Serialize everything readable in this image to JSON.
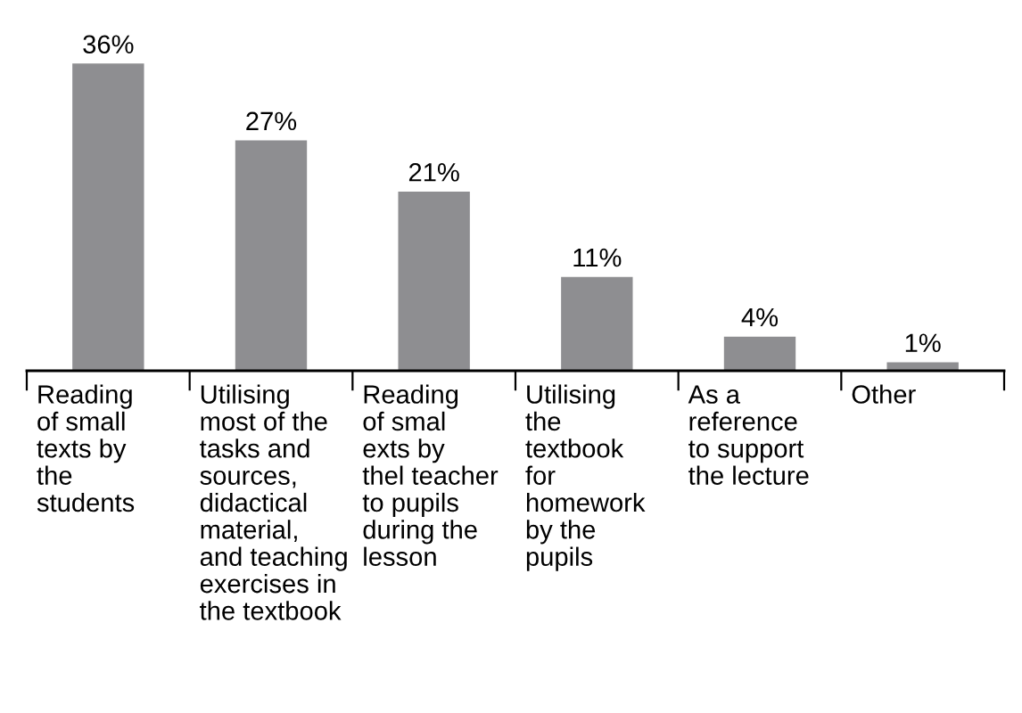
{
  "chart_data": {
    "type": "bar",
    "categories": [
      "Reading\nof small\ntexts by\nthe\nstudents",
      "Utilising\nmost of the\ntasks and\nsources,\ndidactical\nmaterial,\nand teaching\nexercises in\nthe textbook",
      "Reading\nof smal\nexts by\nthel teacher\nto pupils\nduring the\nlesson",
      "Utilising\nthe\ntextbook\nfor\nhomework\nby the\npupils",
      "As a\nreference\nto support\nthe lecture",
      "Other"
    ],
    "values": [
      36,
      27,
      21,
      11,
      4,
      1
    ],
    "value_labels": [
      "36%",
      "27%",
      "21%",
      "11%",
      "4%",
      "1%"
    ],
    "color": "#8e8e91",
    "grid": false,
    "legend": false
  }
}
